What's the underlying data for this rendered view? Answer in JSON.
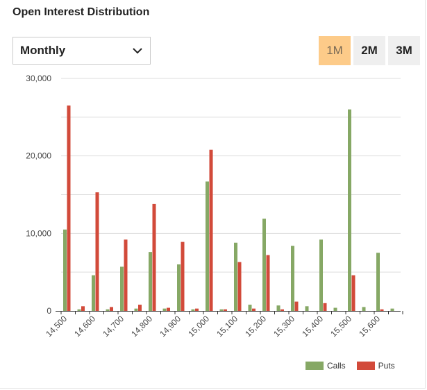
{
  "header": {
    "title": "Open Interest Distribution"
  },
  "period_select": {
    "value": "Monthly"
  },
  "range_buttons": [
    {
      "label": "1M",
      "active": true
    },
    {
      "label": "2M",
      "active": false
    },
    {
      "label": "3M",
      "active": false
    }
  ],
  "colors": {
    "calls": "#86a865",
    "puts": "#d24a3a",
    "grid": "#dddddd",
    "axis": "#333333",
    "active_button": "#fdcb89"
  },
  "chart_data": {
    "type": "bar",
    "title": "",
    "xlabel": "",
    "ylabel": "",
    "ylim": [
      0,
      30000
    ],
    "yticks": [
      0,
      10000,
      20000,
      30000
    ],
    "ytick_labels": [
      "0",
      "10,000",
      "20,000",
      "30,000"
    ],
    "grid": true,
    "legend_position": "bottom-right",
    "categories": [
      14500,
      14550,
      14600,
      14650,
      14700,
      14750,
      14800,
      14850,
      14900,
      14950,
      15000,
      15050,
      15100,
      15150,
      15200,
      15250,
      15300,
      15350,
      15400,
      15450,
      15500,
      15550,
      15600,
      15650
    ],
    "xtick_labels": [
      {
        "index": 0,
        "label": "14,500"
      },
      {
        "index": 2,
        "label": "14,600"
      },
      {
        "index": 4,
        "label": "14,700"
      },
      {
        "index": 6,
        "label": "14,800"
      },
      {
        "index": 8,
        "label": "14,900"
      },
      {
        "index": 10,
        "label": "15,000"
      },
      {
        "index": 12,
        "label": "15,100"
      },
      {
        "index": 14,
        "label": "15,200"
      },
      {
        "index": 16,
        "label": "15,300"
      },
      {
        "index": 18,
        "label": "15,400"
      },
      {
        "index": 20,
        "label": "15,500"
      },
      {
        "index": 22,
        "label": "15,600"
      }
    ],
    "series": [
      {
        "name": "Calls",
        "values": [
          10500,
          200,
          4600,
          200,
          5700,
          300,
          7600,
          300,
          6000,
          200,
          16700,
          200,
          8800,
          800,
          11900,
          700,
          8400,
          600,
          9200,
          400,
          26000,
          500,
          7500,
          300
        ]
      },
      {
        "name": "Puts",
        "values": [
          26500,
          600,
          15300,
          500,
          9200,
          800,
          13800,
          400,
          8900,
          300,
          20800,
          200,
          6300,
          300,
          7200,
          200,
          1200,
          0,
          1000,
          0,
          4600,
          0,
          200,
          0
        ]
      }
    ]
  }
}
